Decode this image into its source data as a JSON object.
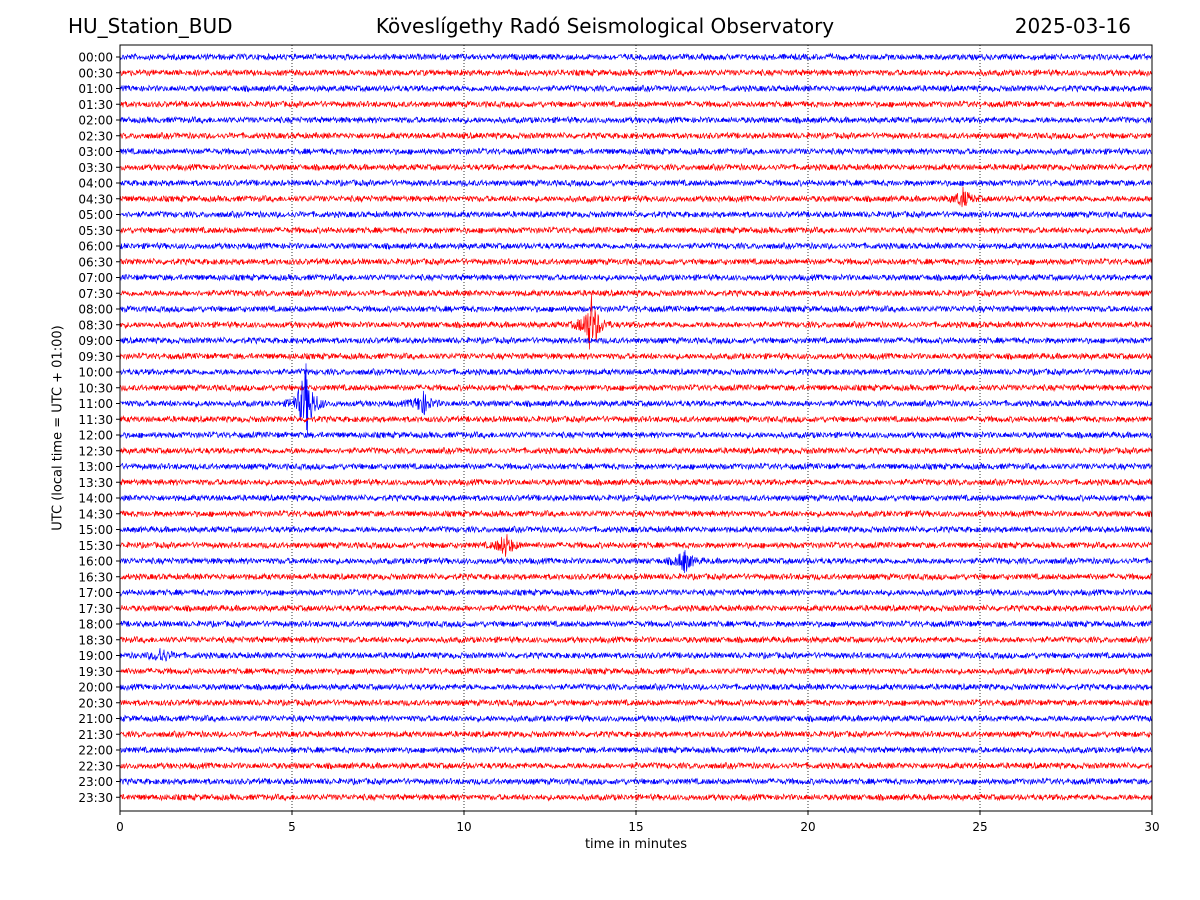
{
  "header": {
    "station": "HU_Station_BUD",
    "title": "Köveslígethy Radó Seismological Observatory",
    "date": "2025-03-16"
  },
  "chart_data": {
    "type": "line",
    "subtype": "helicorder",
    "xlabel": "time in minutes",
    "ylabel": "UTC (local time = UTC + 01:00)",
    "xlim": [
      0,
      30
    ],
    "xticks": [
      0,
      5,
      10,
      15,
      20,
      25,
      30
    ],
    "grid": "vertical dotted lines at x ticks",
    "colors": [
      "#0000ff",
      "#ff0000"
    ],
    "rows": [
      "00:00",
      "00:30",
      "01:00",
      "01:30",
      "02:00",
      "02:30",
      "03:00",
      "03:30",
      "04:00",
      "04:30",
      "05:00",
      "05:30",
      "06:00",
      "06:30",
      "07:00",
      "07:30",
      "08:00",
      "08:30",
      "09:00",
      "09:30",
      "10:00",
      "10:30",
      "11:00",
      "11:30",
      "12:00",
      "12:30",
      "13:00",
      "13:30",
      "14:00",
      "14:30",
      "15:00",
      "15:30",
      "16:00",
      "16:30",
      "17:00",
      "17:30",
      "18:00",
      "18:30",
      "19:00",
      "19:30",
      "20:00",
      "20:30",
      "21:00",
      "21:30",
      "22:00",
      "22:30",
      "23:00",
      "23:30"
    ],
    "events": [
      {
        "row": "08:30",
        "minute": 13.7,
        "amplitude": 4.0
      },
      {
        "row": "11:00",
        "minute": 5.4,
        "amplitude": 5.0
      },
      {
        "row": "11:00",
        "minute": 8.8,
        "amplitude": 1.5
      },
      {
        "row": "15:30",
        "minute": 11.2,
        "amplitude": 1.5
      },
      {
        "row": "16:00",
        "minute": 16.4,
        "amplitude": 1.5
      },
      {
        "row": "04:30",
        "minute": 24.5,
        "amplitude": 1.2
      },
      {
        "row": "19:00",
        "minute": 1.2,
        "amplitude": 1.0
      }
    ]
  }
}
